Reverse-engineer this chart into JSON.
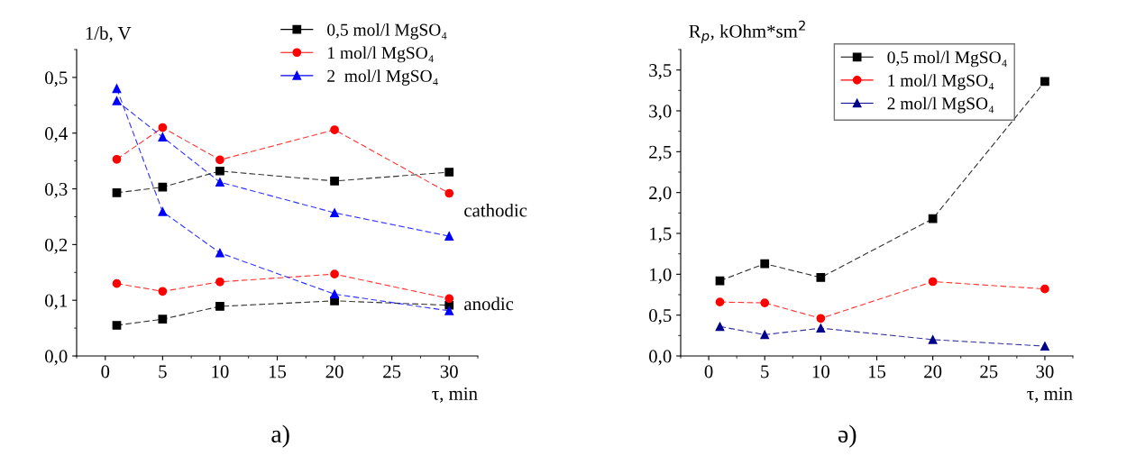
{
  "chart_data": [
    {
      "type": "line",
      "xlabel": "τ, min",
      "ylabel": "1/b, V",
      "x": [
        1,
        5,
        10,
        20,
        30
      ],
      "xlim": [
        -2.5,
        32.5
      ],
      "ylim": [
        0,
        0.55
      ],
      "xticks": [
        0,
        5,
        10,
        15,
        20,
        25,
        30
      ],
      "yticks": [
        {
          "value": 0,
          "label": "0,0"
        },
        {
          "value": 0.1,
          "label": "0,1"
        },
        {
          "value": 0.2,
          "label": "0,2"
        },
        {
          "value": 0.3,
          "label": "0,3"
        },
        {
          "value": 0.4,
          "label": "0,4"
        },
        {
          "value": 0.5,
          "label": "0,5"
        }
      ],
      "legend": "top right",
      "line_style": "dashed",
      "grid": false,
      "annotations": [
        "cathodic",
        "anodic",
        "a)"
      ],
      "series": [
        {
          "name": "0,5 mol/l MgSO₄",
          "color": "#000000",
          "marker": "square",
          "values": [
            0.293,
            0.303,
            0.332,
            0.314,
            0.33
          ]
        },
        {
          "name": "1 mol/l MgSO₄",
          "color": "#ff0000",
          "marker": "circle",
          "values": [
            0.353,
            0.41,
            0.352,
            0.406,
            0.292
          ]
        },
        {
          "name": "2  mol/l MgSO₄",
          "color": "#0000ff",
          "marker": "triangle",
          "values": [
            0.458,
            0.393,
            0.312,
            0.257,
            0.215
          ]
        },
        {
          "color": "#000000",
          "marker": "square",
          "values": [
            0.055,
            0.066,
            0.089,
            0.099,
            0.091
          ]
        },
        {
          "color": "#ff0000",
          "marker": "circle",
          "values": [
            0.13,
            0.116,
            0.133,
            0.147,
            0.103
          ]
        },
        {
          "color": "#0000ff",
          "marker": "triangle",
          "values": [
            0.48,
            0.259,
            0.185,
            0.111,
            0.081
          ]
        }
      ]
    },
    {
      "type": "line",
      "xlabel": "τ, min",
      "ylabel": "R$_{p}$, kOhm*sm$^{2}$",
      "x": [
        1,
        5,
        10,
        20,
        30
      ],
      "xlim": [
        -2.5,
        32.5
      ],
      "ylim": [
        0,
        3.75
      ],
      "xticks": [
        0,
        5,
        10,
        15,
        20,
        25,
        30
      ],
      "yticks": [
        {
          "value": 0,
          "label": "0,0"
        },
        {
          "value": 0.5,
          "label": "0,5"
        },
        {
          "value": 1,
          "label": "1,0"
        },
        {
          "value": 1.5,
          "label": "1,5"
        },
        {
          "value": 2,
          "label": "2,0"
        },
        {
          "value": 2.5,
          "label": "2,5"
        },
        {
          "value": 3,
          "label": "3,0"
        },
        {
          "value": 3.5,
          "label": "3,5"
        }
      ],
      "legend": "top right",
      "line_style": "dashed",
      "grid": false,
      "annotations": [
        "ə)"
      ],
      "series": [
        {
          "name": "0,5 mol/l MgSO₄",
          "color": "#000000",
          "marker": "square",
          "values": [
            0.92,
            1.13,
            0.96,
            1.68,
            3.36
          ]
        },
        {
          "name": "1 mol/l MgSO₄",
          "color": "#ff0000",
          "marker": "circle",
          "values": [
            0.66,
            0.65,
            0.46,
            0.91,
            0.82
          ]
        },
        {
          "name": "2 mol/l MgSO₄",
          "color": "#00008b",
          "marker": "triangle",
          "values": [
            0.36,
            0.26,
            0.34,
            0.2,
            0.12
          ]
        }
      ]
    }
  ]
}
